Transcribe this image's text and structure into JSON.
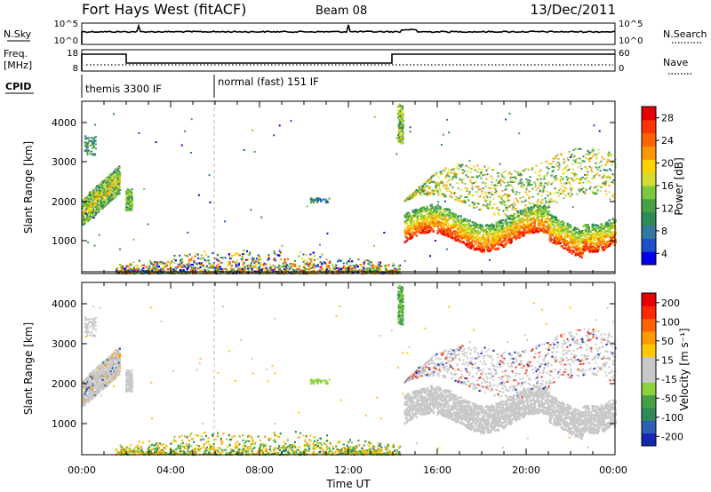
{
  "header": {
    "title": "Fort Hays West (fitACF)",
    "beam": "Beam 08",
    "date": "13/Dec/2011"
  },
  "top_panels": {
    "nsky_label": "N.Sky",
    "nsky_ticks": [
      "10^5",
      "10^0"
    ],
    "nsearch_label": "N.Search",
    "nsearch_ticks": [
      "10^5",
      "10^0"
    ],
    "freq_label_line1": "Freq.",
    "freq_label_line2": "[MHz]",
    "freq_ticks": [
      "18",
      "8"
    ],
    "nave_label": "Nave",
    "nave_ticks": [
      "60",
      "0"
    ],
    "cpid_label": "CPID",
    "cpid_segments": [
      {
        "label": "themis 3300 IF",
        "start_hour": 0,
        "end_hour": 6
      },
      {
        "label": "normal (fast) 151 IF",
        "start_hour": 6,
        "end_hour": 24
      }
    ]
  },
  "chart_data": [
    {
      "type": "heatmap",
      "name": "power",
      "ylabel": "Slant Range [km]",
      "yticks": [
        1000,
        2000,
        3000,
        4000
      ],
      "ylim": [
        180,
        4550
      ],
      "xlim": [
        0,
        24
      ],
      "colorbar": {
        "label": "Power [dB]",
        "ticks": [
          "4",
          "8",
          "12",
          "16",
          "20",
          "24",
          "28"
        ],
        "colors": [
          "#0000ee",
          "#1e50c8",
          "#3278a0",
          "#2e8b57",
          "#46a046",
          "#7dc83c",
          "#d2dc32",
          "#ffd200",
          "#ff9600",
          "#ff6400",
          "#ff3200",
          "#e60000"
        ]
      }
    },
    {
      "type": "heatmap",
      "name": "velocity",
      "ylabel": "Slant Range [km]",
      "yticks": [
        1000,
        2000,
        3000,
        4000
      ],
      "ylim": [
        180,
        4550
      ],
      "xlim": [
        0,
        24
      ],
      "colorbar": {
        "label": "Velocity [m s⁻¹]",
        "ticks": [
          "200",
          "100",
          "50",
          "15",
          "-15",
          "-50",
          "-100",
          "-200"
        ],
        "colors": [
          "#1428b4",
          "#2a60b4",
          "#2e8b57",
          "#46a046",
          "#8cd23c",
          "#c8c8c8",
          "#c8c8c8",
          "#ffc800",
          "#ff9b00",
          "#ff6400",
          "#ff2800",
          "#e60000"
        ]
      }
    }
  ],
  "xaxis": {
    "ticks": [
      "00:00",
      "04:00",
      "08:00",
      "12:00",
      "16:00",
      "20:00",
      "00:00"
    ],
    "label": "Time UT"
  }
}
